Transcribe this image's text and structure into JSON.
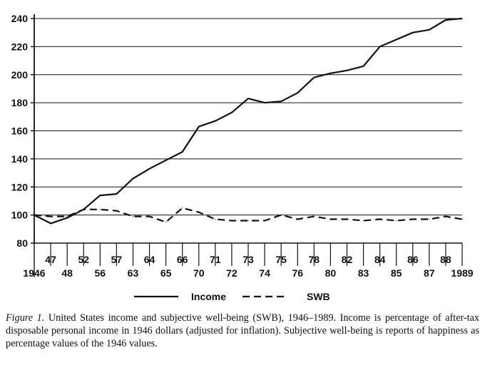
{
  "chart_data": {
    "type": "line",
    "x": [
      "1946",
      "47",
      "48",
      "52",
      "56",
      "57",
      "63",
      "64",
      "65",
      "66",
      "70",
      "71",
      "72",
      "73",
      "74",
      "75",
      "76",
      "78",
      "80",
      "82",
      "83",
      "84",
      "85",
      "86",
      "87",
      "88",
      "1989"
    ],
    "x_labels_lower": [
      "1946",
      "48",
      "56",
      "63",
      "65",
      "70",
      "72",
      "74",
      "76",
      "80",
      "83",
      "85",
      "87",
      "1989"
    ],
    "x_labels_upper": [
      "47",
      "52",
      "57",
      "64",
      "66",
      "71",
      "73",
      "75",
      "78",
      "82",
      "84",
      "86",
      "88"
    ],
    "ylim": [
      80,
      240
    ],
    "y_ticks": [
      "80",
      "100",
      "120",
      "140",
      "160",
      "180",
      "200",
      "220",
      "240"
    ],
    "grid": true,
    "legend_position": "bottom",
    "series": [
      {
        "name": "Income",
        "style": "solid",
        "values": [
          100,
          94,
          98,
          104,
          114,
          115,
          126,
          133,
          139,
          145,
          163,
          167,
          173,
          183,
          180,
          181,
          187,
          198,
          201,
          203,
          206,
          220,
          225,
          230,
          232,
          239,
          240
        ]
      },
      {
        "name": "SWB",
        "style": "dashed",
        "values": [
          100,
          99,
          99,
          104,
          104,
          103,
          99,
          99,
          95,
          105,
          102,
          97,
          96,
          96,
          96,
          100,
          97,
          99,
          97,
          97,
          96,
          97,
          96,
          97,
          97,
          99,
          97
        ]
      }
    ]
  },
  "caption": {
    "label": "Figure 1.",
    "text": "United States income and subjective well-being (SWB), 1946–1989. Income is percentage of after-tax disposable personal income in 1946 dollars (adjusted for inflation). Subjective well-being is reports of happiness as percentage values of the 1946 values."
  },
  "colors": {
    "line": "#111111",
    "grid": "#111111"
  }
}
